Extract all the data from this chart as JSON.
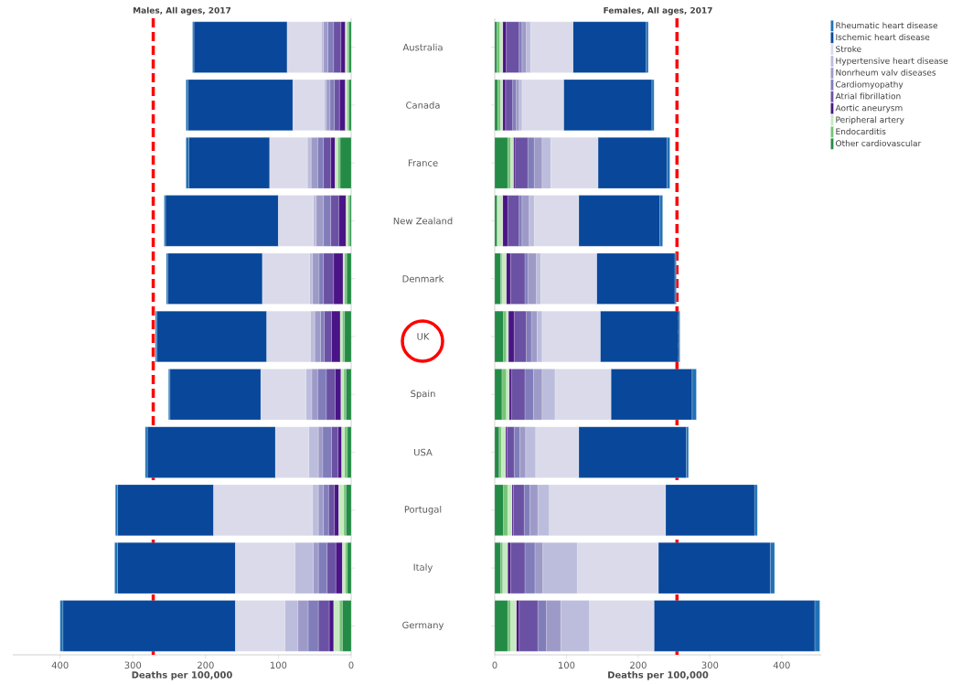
{
  "chart_data": [
    {
      "type": "bar",
      "orientation": "horizontal",
      "stacked": true,
      "title": "Males, All ages, 2017",
      "xlabel": "Deaths per 100,000",
      "categories": [
        "Australia",
        "Canada",
        "France",
        "New Zealand",
        "Denmark",
        "UK",
        "Spain",
        "USA",
        "Portugal",
        "Italy",
        "Germany"
      ],
      "xlim": [
        465,
        0
      ],
      "xticks": [
        0,
        100,
        200,
        300,
        400
      ],
      "series": [
        {
          "color": "#238b45",
          "values": [
            3,
            3,
            15,
            2,
            6,
            9,
            7,
            5,
            7,
            5,
            12
          ]
        },
        {
          "color": "#74c476",
          "values": [
            2,
            2,
            3,
            2,
            3,
            3,
            3,
            4,
            3,
            3,
            4
          ]
        },
        {
          "color": "#c7e9c0",
          "values": [
            3,
            3,
            4,
            3,
            2,
            3,
            4,
            4,
            7,
            4,
            8
          ]
        },
        {
          "color": "#4a1486",
          "values": [
            6,
            8,
            6,
            10,
            13,
            12,
            8,
            5,
            6,
            9,
            6
          ]
        },
        {
          "color": "#6a51a3",
          "values": [
            10,
            7,
            10,
            11,
            14,
            10,
            12,
            9,
            8,
            12,
            15
          ]
        },
        {
          "color": "#807dba",
          "values": [
            8,
            6,
            8,
            10,
            6,
            5,
            12,
            12,
            7,
            12,
            14
          ]
        },
        {
          "color": "#9e9ac8",
          "values": [
            6,
            5,
            9,
            10,
            9,
            8,
            8,
            6,
            7,
            7,
            14
          ]
        },
        {
          "color": "#bcbddc",
          "values": [
            3,
            3,
            5,
            4,
            4,
            6,
            8,
            13,
            8,
            25,
            18
          ]
        },
        {
          "color": "#dadaea",
          "values": [
            47,
            43,
            52,
            48,
            65,
            60,
            62,
            46,
            136,
            82,
            68
          ]
        },
        {
          "color": "#08479a",
          "values": [
            128,
            144,
            111,
            155,
            130,
            151,
            125,
            176,
            132,
            162,
            237
          ]
        },
        {
          "color": "#2171b5",
          "values": [
            2,
            3,
            4,
            2,
            2,
            2,
            2,
            3,
            3,
            4,
            4
          ]
        }
      ],
      "ref_lines": [
        {
          "axis": "x",
          "value": 272,
          "color": "#ff0000",
          "line_style": "dashed"
        }
      ]
    },
    {
      "type": "bar",
      "orientation": "horizontal",
      "stacked": true,
      "title": "Females, All ages, 2017",
      "xlabel": "Deaths per 100,000",
      "tick_labels": "x",
      "legend": "right",
      "categories": [
        null,
        null,
        null,
        null,
        null,
        null,
        null,
        null,
        null,
        null,
        null
      ],
      "xlim": [
        0,
        455
      ],
      "xticks": [
        0,
        100,
        200,
        300,
        400
      ],
      "series": [
        {
          "name": "Other cardiovascular",
          "color": "#238b45",
          "values": [
            3,
            4,
            18,
            3,
            8,
            12,
            10,
            6,
            12,
            8,
            18
          ]
        },
        {
          "name": "Endocarditis",
          "color": "#74c476",
          "values": [
            4,
            4,
            4,
            1,
            2,
            4,
            6,
            3,
            6,
            3,
            4
          ]
        },
        {
          "name": "Peripheral artery",
          "color": "#c7e9c0",
          "values": [
            4,
            3,
            4,
            7,
            6,
            3,
            4,
            6,
            6,
            7,
            8
          ]
        },
        {
          "name": "Aortic aneurysm",
          "color": "#4a1486",
          "values": [
            5,
            4,
            2,
            7,
            6,
            8,
            3,
            2,
            2,
            4,
            4
          ]
        },
        {
          "name": "Atrial fibrillation",
          "color": "#6a51a3",
          "values": [
            18,
            10,
            18,
            16,
            20,
            17,
            19,
            10,
            15,
            20,
            26
          ]
        },
        {
          "name": "Cardiomyopathy",
          "color": "#807dba",
          "values": [
            4,
            5,
            9,
            4,
            4,
            7,
            12,
            8,
            8,
            14,
            12
          ]
        },
        {
          "name": "Nonrheum valv diseases",
          "color": "#9e9ac8",
          "values": [
            6,
            4,
            11,
            10,
            12,
            8,
            12,
            8,
            11,
            11,
            20
          ]
        },
        {
          "name": "Hypertensive heart disease",
          "color": "#bcbddc",
          "values": [
            6,
            4,
            12,
            7,
            6,
            7,
            18,
            14,
            16,
            48,
            40
          ]
        },
        {
          "name": "Stroke",
          "color": "#dadaea",
          "values": [
            59,
            58,
            66,
            62,
            78,
            81,
            78,
            60,
            162,
            113,
            90
          ]
        },
        {
          "name": "Ischemic heart disease",
          "color": "#08479a",
          "values": [
            102,
            123,
            96,
            113,
            109,
            109,
            113,
            150,
            124,
            156,
            224
          ]
        },
        {
          "name": "Rheumatic heart disease",
          "color": "#2171b5",
          "values": [
            3,
            3,
            4,
            4,
            2,
            2,
            6,
            3,
            4,
            6,
            7
          ]
        }
      ],
      "ref_lines": [
        {
          "axis": "x",
          "value": 254,
          "color": "#ff0000",
          "line_style": "dashed"
        }
      ]
    }
  ]
}
